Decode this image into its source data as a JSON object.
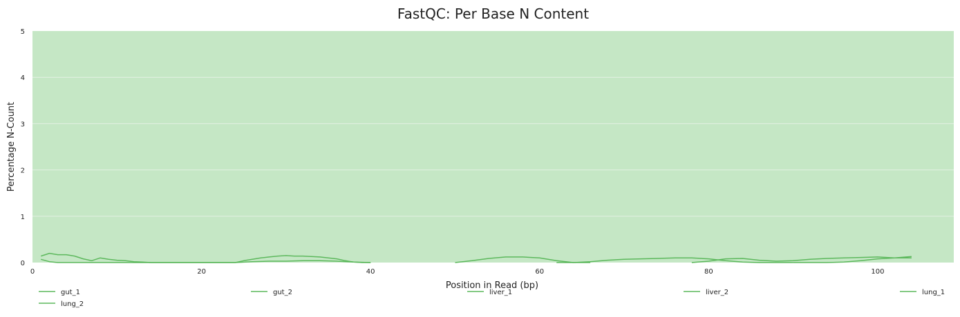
{
  "chart_data": {
    "type": "line",
    "title": "FastQC: Per Base N Content",
    "xlabel": "Position in Read (bp)",
    "ylabel": "Percentage N-Count",
    "xlim": [
      0,
      109
    ],
    "ylim": [
      0,
      5
    ],
    "x_ticks": [
      0,
      20,
      40,
      60,
      80,
      100
    ],
    "y_ticks": [
      0,
      1,
      2,
      3,
      4,
      5
    ],
    "grid": true,
    "legend_position": "bottom",
    "colors": {
      "background_band": "#c5e7c5",
      "line": "#5cb85c",
      "grid": "#e3f1e3"
    },
    "series": [
      {
        "name": "gut_1",
        "x": [
          1,
          2,
          3,
          4,
          5,
          6,
          7,
          8,
          9,
          10,
          11,
          12,
          13,
          14,
          15,
          16,
          17,
          18,
          19,
          20,
          21,
          22,
          23,
          24,
          25,
          26,
          27,
          28,
          29,
          30,
          31,
          32,
          33,
          34,
          35,
          36,
          37,
          38,
          39,
          40
        ],
        "y": [
          0.14,
          0.2,
          0.17,
          0.17,
          0.14,
          0.08,
          0.04,
          0.1,
          0.07,
          0.05,
          0.04,
          0.02,
          0.01,
          0,
          0,
          0,
          0,
          0,
          0,
          0,
          0,
          0,
          0,
          0,
          0.04,
          0.07,
          0.1,
          0.12,
          0.14,
          0.15,
          0.14,
          0.14,
          0.13,
          0.12,
          0.1,
          0.08,
          0.04,
          0.01,
          0,
          0
        ]
      },
      {
        "name": "gut_2",
        "x": [
          1,
          2,
          3,
          10,
          20,
          24,
          26,
          28,
          30,
          32,
          34,
          36,
          38,
          40
        ],
        "y": [
          0.07,
          0.02,
          0,
          0,
          0,
          0,
          0.02,
          0.03,
          0.03,
          0.04,
          0.04,
          0.03,
          0.01,
          0
        ]
      },
      {
        "name": "liver_1",
        "x": [
          50,
          52,
          54,
          56,
          58,
          60,
          62,
          64,
          66
        ],
        "y": [
          0,
          0.04,
          0.09,
          0.12,
          0.12,
          0.1,
          0.04,
          0,
          0
        ]
      },
      {
        "name": "liver_2",
        "x": [
          62,
          64,
          66,
          68,
          70,
          72,
          74,
          76,
          78,
          80,
          82,
          84,
          86,
          88,
          90
        ],
        "y": [
          0,
          0,
          0.02,
          0.05,
          0.07,
          0.08,
          0.09,
          0.1,
          0.1,
          0.08,
          0.04,
          0.01,
          0,
          0,
          0
        ]
      },
      {
        "name": "lung_1",
        "x": [
          78,
          80,
          82,
          84,
          86,
          88,
          90,
          92,
          94,
          96,
          98,
          100,
          102,
          104
        ],
        "y": [
          0,
          0.03,
          0.08,
          0.09,
          0.05,
          0.03,
          0.04,
          0.07,
          0.09,
          0.1,
          0.11,
          0.12,
          0.1,
          0.1
        ]
      },
      {
        "name": "lung_2",
        "x": [
          90,
          92,
          94,
          96,
          98,
          100,
          102,
          104
        ],
        "y": [
          0,
          0,
          0,
          0.01,
          0.04,
          0.08,
          0.1,
          0.13
        ]
      }
    ]
  }
}
